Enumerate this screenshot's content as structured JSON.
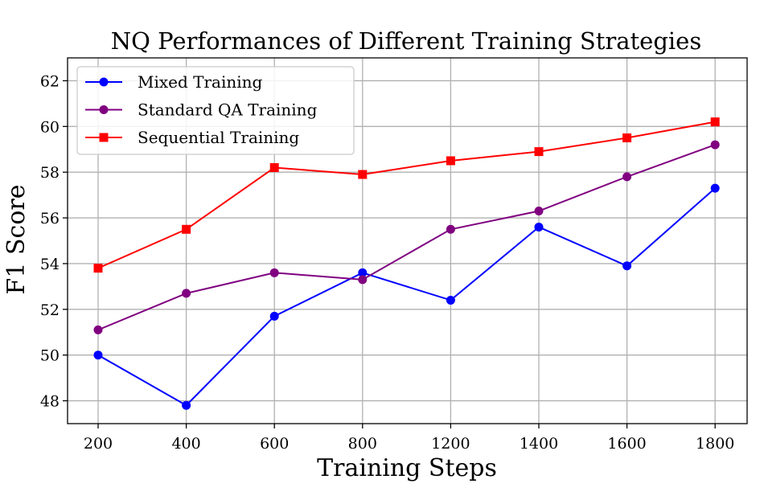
{
  "chart_data": {
    "type": "line",
    "title": "NQ Performances of Different Training Strategies",
    "xlabel": "Training Steps",
    "ylabel": "F1 Score",
    "categories": [
      "200",
      "400",
      "600",
      "800",
      "1200",
      "1400",
      "1600",
      "1800"
    ],
    "ylim": [
      47,
      63
    ],
    "yticks": [
      48,
      50,
      52,
      54,
      56,
      58,
      60,
      62
    ],
    "grid": true,
    "legend_position": "upper-left",
    "series": [
      {
        "name": "Mixed Training",
        "color": "#0000ff",
        "marker": "circle",
        "values": [
          50.0,
          47.8,
          51.7,
          53.6,
          52.4,
          55.6,
          53.9,
          57.3
        ]
      },
      {
        "name": "Standard QA Training",
        "color": "#800080",
        "marker": "circle",
        "values": [
          51.1,
          52.7,
          53.6,
          53.3,
          55.5,
          56.3,
          57.8,
          59.2
        ]
      },
      {
        "name": "Sequential Training",
        "color": "#ff0000",
        "marker": "square",
        "values": [
          53.8,
          55.5,
          58.2,
          57.9,
          58.5,
          58.9,
          59.5,
          60.2
        ]
      }
    ]
  }
}
